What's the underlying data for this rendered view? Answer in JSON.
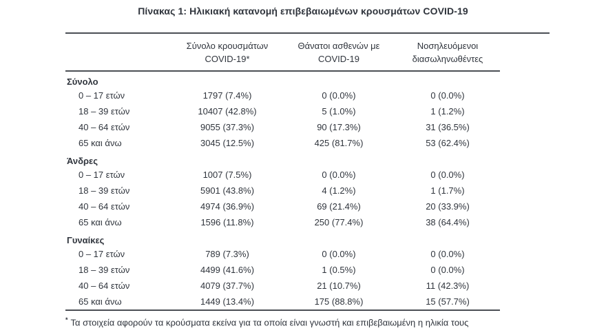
{
  "title": "Πίνακας 1: Ηλικιακή κατανομή επιβεβαιωμένων κρουσμάτων COVID-19",
  "colors": {
    "background": "#ffffff",
    "text": "#2f343c",
    "rule": "#4a4e54"
  },
  "table_header": {
    "col1_line1": "Σύνολο κρουσμάτων",
    "col1_line2": "COVID-19*",
    "col2_line1": "Θάνατοι ασθενών με",
    "col2_line2": "COVID-19",
    "col3_line1": "Νοσηλευόμενοι",
    "col3_line2": "διασωληνωθέντες"
  },
  "chart_data": {
    "type": "table",
    "title": "Πίνακας 1: Ηλικιακή κατανομή επιβεβαιωμένων κρουσμάτων COVID-19",
    "columns": [
      "",
      "Σύνολο κρουσμάτων COVID-19*",
      "Θάνατοι ασθενών με COVID-19",
      "Νοσηλευόμενοι διασωληνωθέντες"
    ],
    "rows": [
      [
        "Σύνολο",
        "",
        "",
        ""
      ],
      [
        "0 – 17 ετών",
        "1797 (7.4%)",
        "0 (0.0%)",
        "0 (0.0%)"
      ],
      [
        "18 – 39 ετών",
        "10407 (42.8%)",
        "5 (1.0%)",
        "1 (1.2%)"
      ],
      [
        "40 – 64 ετών",
        "9055 (37.3%)",
        "90 (17.3%)",
        "31 (36.5%)"
      ],
      [
        "65 και άνω",
        "3045 (12.5%)",
        "425 (81.7%)",
        "53 (62.4%)"
      ],
      [
        "Άνδρες",
        "",
        "",
        ""
      ],
      [
        "0 – 17 ετών",
        "1007 (7.5%)",
        "0 (0.0%)",
        "0 (0.0%)"
      ],
      [
        "18 – 39 ετών",
        "5901 (43.8%)",
        "4 (1.2%)",
        "1 (1.7%)"
      ],
      [
        "40 – 64 ετών",
        "4974 (36.9%)",
        "69 (21.4%)",
        "20 (33.9%)"
      ],
      [
        "65 και άνω",
        "1596 (11.8%)",
        "250 (77.4%)",
        "38 (64.4%)"
      ],
      [
        "Γυναίκες",
        "",
        "",
        ""
      ],
      [
        "0 – 17 ετών",
        "789 (7.3%)",
        "0 (0.0%)",
        "0 (0.0%)"
      ],
      [
        "18 – 39 ετών",
        "4499 (41.6%)",
        "1 (0.5%)",
        "0 (0.0%)"
      ],
      [
        "40 – 64 ετών",
        "4079 (37.7%)",
        "21 (10.7%)",
        "11 (42.3%)"
      ],
      [
        "65 και άνω",
        "1449 (13.4%)",
        "175 (88.8%)",
        "15 (57.7%)"
      ]
    ]
  },
  "footnote": {
    "marker": "*",
    "text": "Τα στοιχεία αφορούν τα κρούσματα εκείνα για τα οποία είναι γνωστή και επιβεβαιωμένη η ηλικία τους"
  }
}
